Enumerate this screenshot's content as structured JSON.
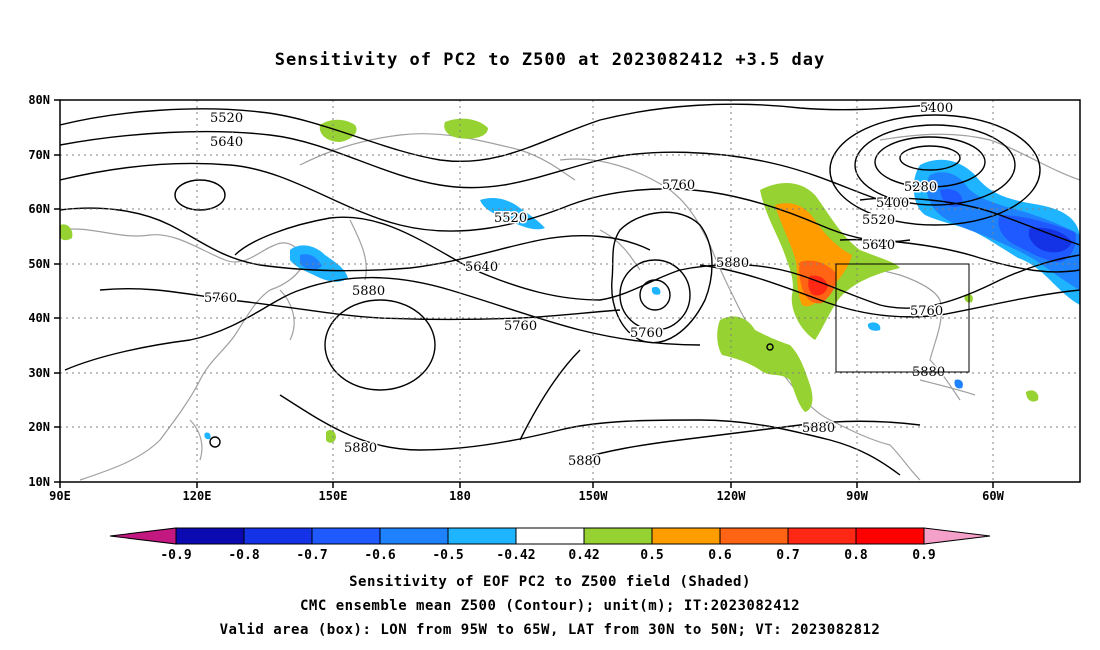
{
  "title": "Sensitivity of PC2 to Z500 at 2023082412 +3.5 day",
  "lat_labels": [
    "80N",
    "70N",
    "60N",
    "50N",
    "40N",
    "30N",
    "20N",
    "10N"
  ],
  "lon_labels": [
    "90E",
    "120E",
    "150E",
    "180",
    "150W",
    "120W",
    "90W",
    "60W"
  ],
  "contour_labels": [
    "5400",
    "5520",
    "5640",
    "5760",
    "5280",
    "5400",
    "5520",
    "5640",
    "5520",
    "5640",
    "5760",
    "5880",
    "5760",
    "5880",
    "5880",
    "5760",
    "5880",
    "5880",
    "5880",
    "5760"
  ],
  "colorbar": {
    "labels": [
      "-0.9",
      "-0.8",
      "-0.7",
      "-0.6",
      "-0.5",
      "-0.42",
      "0.42",
      "0.5",
      "0.6",
      "0.7",
      "0.8",
      "0.9"
    ],
    "colors": [
      "#c2187f",
      "#0a0ab0",
      "#1432e6",
      "#1e5aff",
      "#1e82ff",
      "#1eb4ff",
      "#ffffff",
      "#96d232",
      "#ff9c00",
      "#ff6414",
      "#ff2814",
      "#ff0000",
      "#f5a0c8"
    ]
  },
  "captions": [
    "Sensitivity of EOF PC2 to Z500 field (Shaded)",
    "CMC ensemble mean Z500 (Contour); unit(m); IT:2023082412",
    "Valid area (box): LON from 95W to 65W, LAT from 30N to 50N; VT: 2023082812"
  ]
}
